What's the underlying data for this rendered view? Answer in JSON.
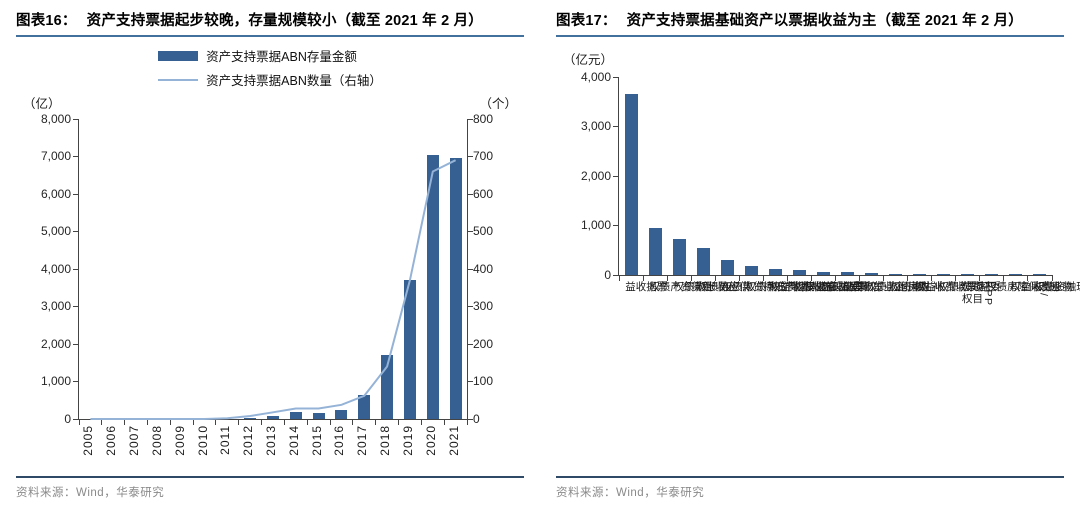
{
  "colors": {
    "bar": "#366092",
    "line": "#95B3D7",
    "title_underline": "#41719C",
    "source_divider": "#2E4A66",
    "source_text": "#8a8a8a"
  },
  "left_panel": {
    "title_tag": "图表16：",
    "title": "资产支持票据起步较晚，存量规模较小（截至 2021 年 2 月）",
    "source": "资料来源：Wind，华泰研究",
    "chart_data": {
      "type": "bar+line",
      "legend_position": "top-center",
      "grid": false,
      "unit_left": "（亿）",
      "unit_right": "（个）",
      "legend": [
        "资产支持票据ABN存量金额",
        "资产支持票据ABN数量（右轴）"
      ],
      "categories": [
        "2005",
        "2006",
        "2007",
        "2008",
        "2009",
        "2010",
        "2011",
        "2012",
        "2013",
        "2014",
        "2015",
        "2016",
        "2017",
        "2018",
        "2019",
        "2020",
        "2021"
      ],
      "series": [
        {
          "name": "资产支持票据ABN存量金额",
          "kind": "bar",
          "axis": "left",
          "values": [
            0,
            0,
            0,
            0,
            0,
            0,
            0,
            35,
            85,
            190,
            170,
            250,
            650,
            1700,
            3700,
            7050,
            6950
          ]
        },
        {
          "name": "资产支持票据ABN数量（右轴）",
          "kind": "line",
          "axis": "right",
          "values": [
            0,
            0,
            0,
            0,
            0,
            0,
            2,
            8,
            18,
            28,
            28,
            38,
            62,
            140,
            370,
            660,
            690
          ]
        }
      ],
      "left_axis": {
        "min": 0,
        "max": 8000,
        "step": 1000,
        "tick_labels": [
          "8,000",
          "7,000",
          "6,000",
          "5,000",
          "4,000",
          "3,000",
          "2,000",
          "1,000",
          "0"
        ]
      },
      "right_axis": {
        "min": 0,
        "max": 800,
        "step": 100,
        "tick_labels": [
          "800",
          "700",
          "600",
          "500",
          "400",
          "300",
          "200",
          "100",
          "0"
        ]
      },
      "x_label_mode": "rotated-number",
      "colors": {
        "bar": "#366092",
        "line": "#95B3D7"
      }
    }
  },
  "right_panel": {
    "title_tag": "图表17：",
    "title": "资产支持票据基础资产以票据收益为主（截至 2021 年 2 月）",
    "source": "资料来源：Wind，华泰研究",
    "chart_data": {
      "type": "bar",
      "grid": false,
      "unit_left": "（亿元）",
      "categories": [
        "票据收益",
        "租赁资产债权",
        "应收账款债权",
        "供应链债权",
        "商业房地产抵押贷款债权",
        "个人消费贷款债权",
        "基础设施收费收益权",
        "票据收益权债权",
        "信托受益债权",
        "微小企业贷款债权",
        "购房尾款债权",
        "补贴款债权",
        "客票收费收益权",
        "委托贷款债权",
        "PPP项目债权",
        "棚改/保障房债权",
        "物业费收益权",
        "保理融资债权"
      ],
      "series": [
        {
          "name": "基础资产存量金额",
          "kind": "bar",
          "axis": "left",
          "values": [
            3650,
            940,
            720,
            550,
            300,
            185,
            125,
            110,
            65,
            60,
            35,
            30,
            18,
            10,
            5,
            3,
            2,
            2
          ]
        }
      ],
      "left_axis": {
        "min": 0,
        "max": 4000,
        "step": 1000,
        "tick_labels": [
          "4,000",
          "3,000",
          "2,000",
          "1,000",
          "0"
        ]
      },
      "x_label_mode": "vertical-cjk",
      "colors": {
        "bar": "#366092"
      }
    }
  }
}
